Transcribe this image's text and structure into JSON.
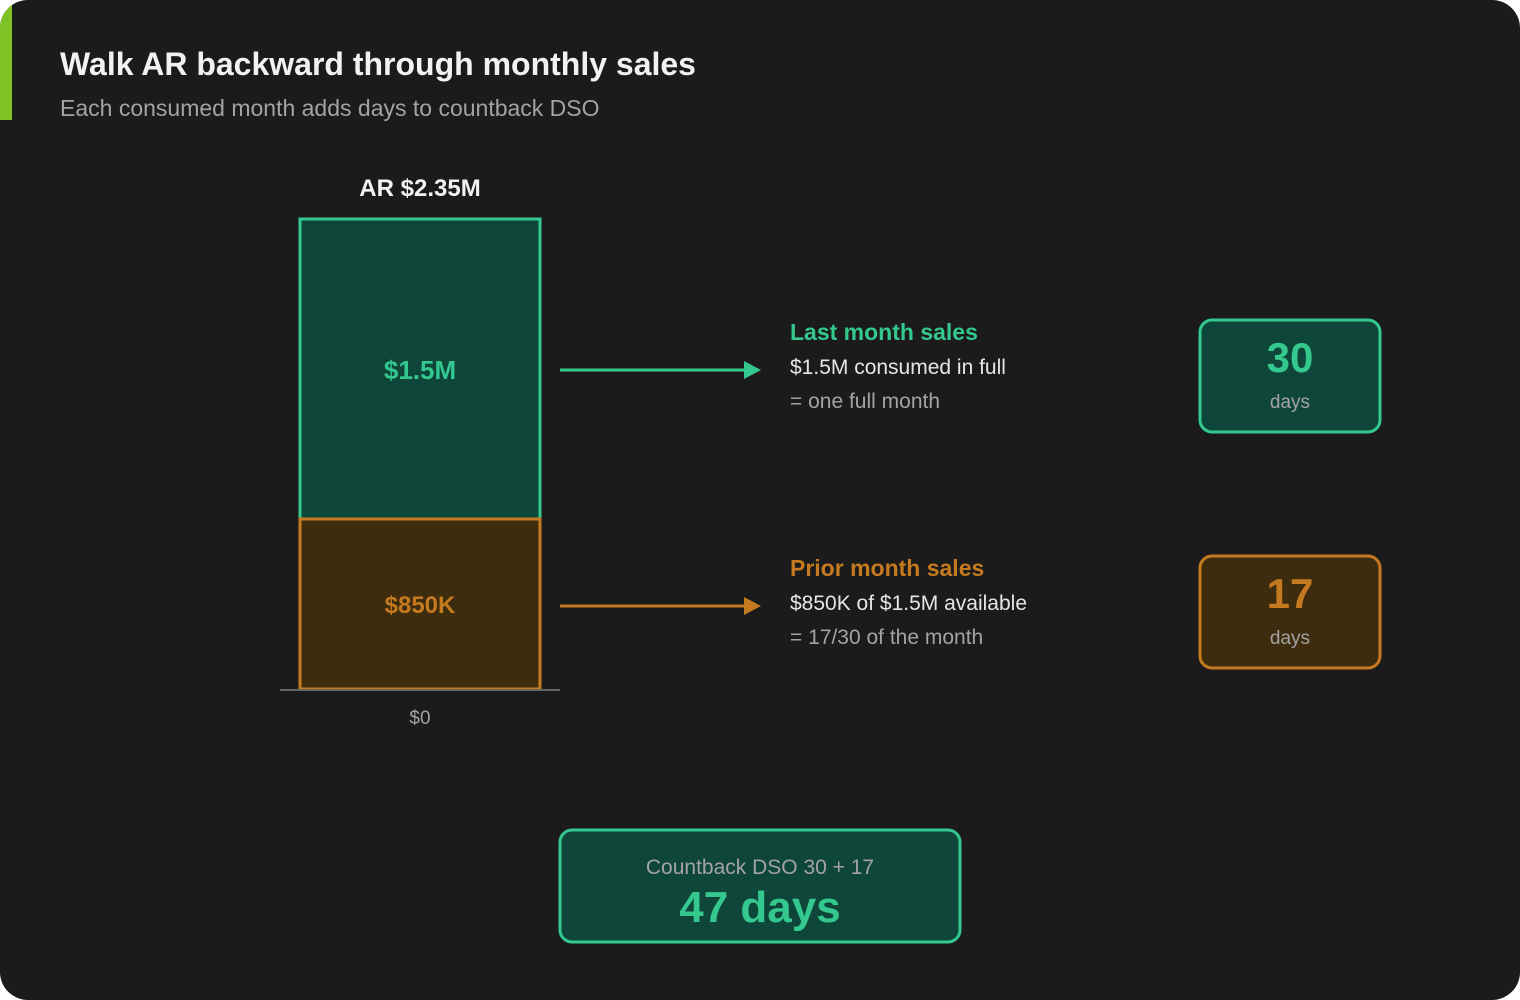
{
  "title": "Walk AR backward through monthly sales",
  "subtitle": "Each consumed month adds days to countback DSO",
  "colors": {
    "background": "#1b1b1b",
    "accent": "#7ec225",
    "green": "#34c88f",
    "green_fill": "#0f463a",
    "orange": "#c67a1f",
    "orange_fill": "#3d2c0e",
    "text": "#f2f2f2",
    "muted": "#a3a3a3"
  },
  "bar": {
    "total_label": "AR $2.35M",
    "base_label": "$0",
    "segments": [
      {
        "label": "$1.5M",
        "value": 1.5
      },
      {
        "label": "$850K",
        "value": 0.85
      }
    ]
  },
  "steps": [
    {
      "heading": "Last month sales",
      "line1": "$1.5M consumed in full",
      "line2": "= one full month",
      "days_value": "30",
      "days_unit": "days"
    },
    {
      "heading": "Prior month sales",
      "line1": "$850K of $1.5M available",
      "line2": "= 17/30 of the month",
      "days_value": "17",
      "days_unit": "days"
    }
  ],
  "result": {
    "caption": "Countback DSO 30 + 17",
    "value": "47 days"
  }
}
